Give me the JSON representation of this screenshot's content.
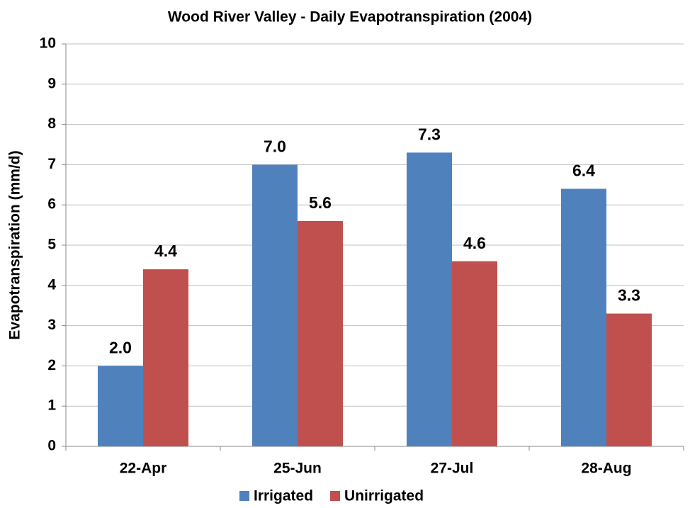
{
  "chart_data": {
    "type": "bar",
    "title": "Wood River Valley - Daily Evapotranspiration (2004)",
    "y_label": "Evapotranspiration (mm/d)",
    "categories": [
      "22-Apr",
      "25-Jun",
      "27-Jul",
      "28-Aug"
    ],
    "series": [
      {
        "name": "Irrigated",
        "color": "#4f81bd",
        "values": [
          2,
          7,
          7.3,
          6.4
        ],
        "value_labels": [
          "2.0",
          "7.0",
          "7.3",
          "6.4"
        ]
      },
      {
        "name": "Unirrigated",
        "color": "#c0504d",
        "values": [
          4.4,
          5.6,
          4.6,
          3.3
        ],
        "value_labels": [
          "4.4",
          "5.6",
          "4.6",
          "3.3"
        ]
      }
    ],
    "ylim": [
      0,
      10
    ],
    "yticks": [
      0,
      1,
      2,
      3,
      4,
      5,
      6,
      7,
      8,
      9,
      10
    ],
    "grid": true,
    "legend": "bottom"
  }
}
